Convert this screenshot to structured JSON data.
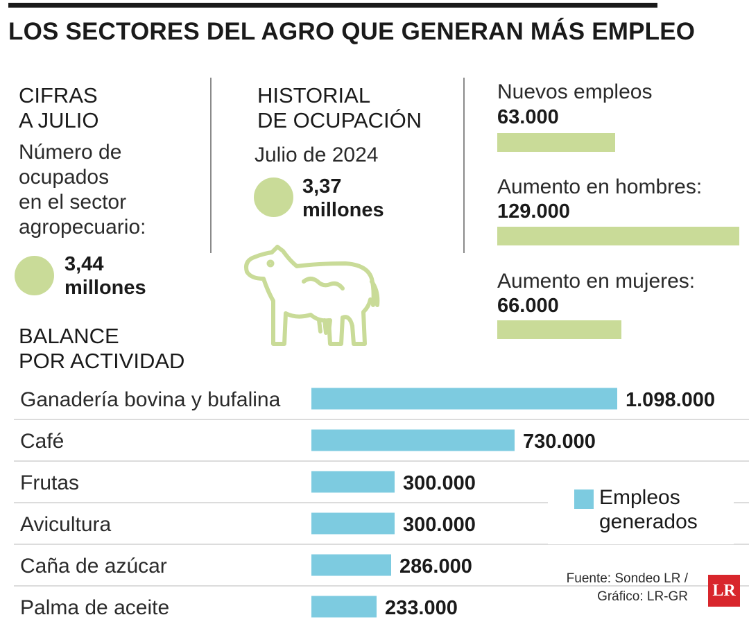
{
  "title": "LOS SECTORES DEL AGRO QUE GENERAN MÁS EMPLEO",
  "cifras": {
    "heading_line1": "CIFRAS",
    "heading_line2": "A JULIO",
    "desc_line1": "Número de",
    "desc_line2": "ocupados",
    "desc_line3": "en el sector",
    "desc_line4": "agropecuario:",
    "value_line1": "3,44",
    "value_line2": "millones"
  },
  "historial": {
    "heading_line1": "HISTORIAL",
    "heading_line2": "DE OCUPACIÓN",
    "date": "Julio de 2024",
    "value_line1": "3,37",
    "value_line2": "millones"
  },
  "stats": [
    {
      "label": "Nuevos empleos",
      "value": "63.000",
      "amount": 63000
    },
    {
      "label": "Aumento en hombres:",
      "value": "129.000",
      "amount": 129000
    },
    {
      "label": "Aumento en mujeres:",
      "value": "66.000",
      "amount": 66000
    }
  ],
  "balance": {
    "heading_line1": "BALANCE",
    "heading_line2": "POR ACTIVIDAD"
  },
  "legend": {
    "line1": "Empleos",
    "line2": "generados"
  },
  "source": {
    "line1": "Fuente: Sondeo LR /",
    "line2": "Gráfico: LR-GR"
  },
  "logo_text": "LR",
  "colors": {
    "bar_blue": "#7dcbe0",
    "accent_green": "#c9db98",
    "logo_red": "#d8262c"
  },
  "chart_data": {
    "type": "bar",
    "orientation": "horizontal",
    "categories": [
      "Ganadería bovina y bufalina",
      "Café",
      "Frutas",
      "Avicultura",
      "Caña de azúcar",
      "Palma de aceite"
    ],
    "series": [
      {
        "name": "Empleos generados",
        "values": [
          1098000,
          730000,
          300000,
          300000,
          286000,
          233000
        ],
        "labels": [
          "1.098.000",
          "730.000",
          "300.000",
          "300.000",
          "286.000",
          "233.000"
        ]
      }
    ],
    "grid": false,
    "legend_position": "right"
  }
}
